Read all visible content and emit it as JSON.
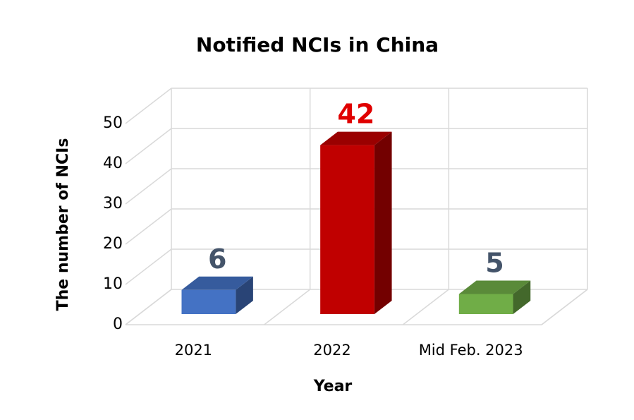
{
  "chart_data": {
    "type": "bar3d",
    "title": "Notified NCIs in China",
    "x_label": "Year",
    "y_label": "The number of NCIs",
    "categories": [
      "2021",
      "2022",
      "Mid Feb. 2023"
    ],
    "values": [
      6,
      42,
      5
    ],
    "colors": [
      "#4472c4",
      "#c00000",
      "#70ad47"
    ],
    "label_colors": [
      "#44546a",
      "#e00000",
      "#44546a"
    ],
    "ylim": [
      0,
      50
    ],
    "yticks": [
      0,
      10,
      20,
      30,
      40,
      50
    ],
    "grid": true
  }
}
